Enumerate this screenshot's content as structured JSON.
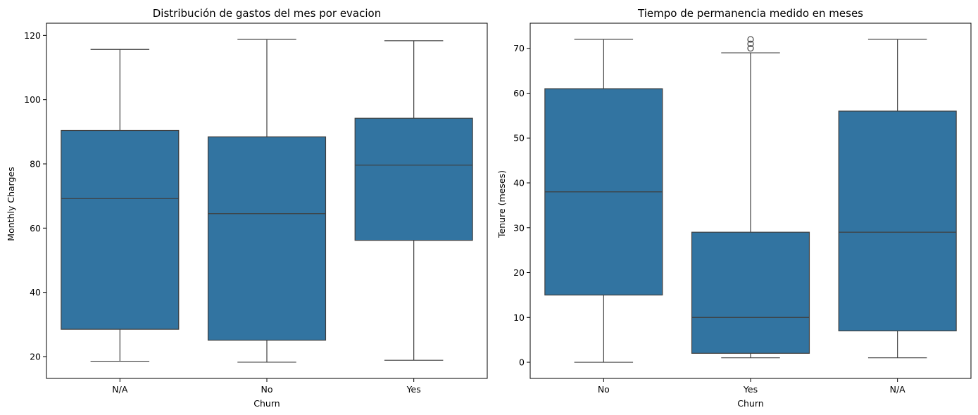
{
  "figure": {
    "background": "#ffffff",
    "box_color": "#3274a1",
    "line_color": "#3f3f3f"
  },
  "chart_data": [
    {
      "type": "box",
      "title": "Distribución de gastos del mes por evacion",
      "xlabel": "Churn",
      "ylabel": "Monthly Charges",
      "ylim": [
        13.2,
        123.8
      ],
      "yticks": [
        20,
        40,
        60,
        80,
        100,
        120
      ],
      "categories": [
        "N/A",
        "No",
        "Yes"
      ],
      "boxes": [
        {
          "category": "N/A",
          "whisker_low": 18.55,
          "q1": 28.5,
          "median": 69.2,
          "q3": 90.4,
          "whisker_high": 115.65,
          "outliers": []
        },
        {
          "category": "No",
          "whisker_low": 18.25,
          "q1": 25.1,
          "median": 64.5,
          "q3": 88.4,
          "whisker_high": 118.75,
          "outliers": []
        },
        {
          "category": "Yes",
          "whisker_low": 18.85,
          "q1": 56.2,
          "median": 79.6,
          "q3": 94.2,
          "whisker_high": 118.35,
          "outliers": []
        }
      ]
    },
    {
      "type": "box",
      "title": "Tiempo de permanencia medido en meses",
      "xlabel": "Churn",
      "ylabel": "Tenure (meses)",
      "ylim": [
        -3.6,
        75.6
      ],
      "yticks": [
        0,
        10,
        20,
        30,
        40,
        50,
        60,
        70
      ],
      "categories": [
        "No",
        "Yes",
        "N/A"
      ],
      "boxes": [
        {
          "category": "No",
          "whisker_low": 0,
          "q1": 15,
          "median": 38,
          "q3": 61,
          "whisker_high": 72,
          "outliers": []
        },
        {
          "category": "Yes",
          "whisker_low": 1,
          "q1": 2,
          "median": 10,
          "q3": 29,
          "whisker_high": 69,
          "outliers": [
            70,
            71,
            72
          ]
        },
        {
          "category": "N/A",
          "whisker_low": 1,
          "q1": 7,
          "median": 29,
          "q3": 56,
          "whisker_high": 72,
          "outliers": []
        }
      ]
    }
  ]
}
